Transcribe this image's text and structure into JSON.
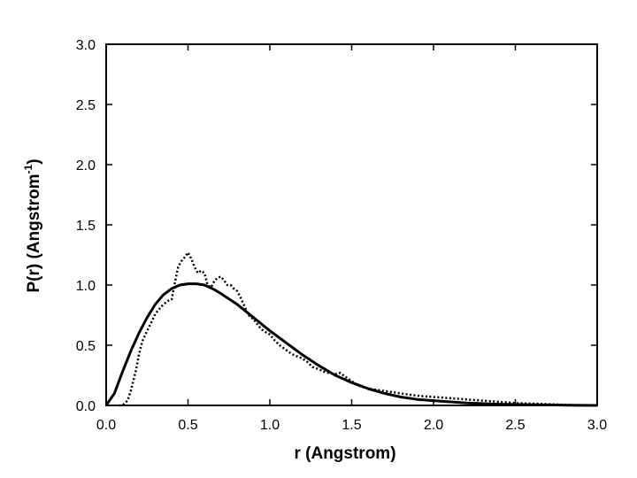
{
  "chart_data": {
    "type": "line",
    "title": "",
    "xlabel": "r  (Angstrom)",
    "ylabel_main": "P(r)  (Angstrom",
    "ylabel_superscript": "-1",
    "ylabel_close": ")",
    "xlim": [
      0,
      3
    ],
    "ylim": [
      0,
      3
    ],
    "x_ticks": [
      0.0,
      0.5,
      1.0,
      1.5,
      2.0,
      2.5,
      3.0
    ],
    "y_ticks": [
      0.0,
      0.5,
      1.0,
      1.5,
      2.0,
      2.5,
      3.0
    ],
    "x_tick_labels": [
      "0.0",
      "0.5",
      "1.0",
      "1.5",
      "2.0",
      "2.5",
      "3.0"
    ],
    "y_tick_labels": [
      "0.0",
      "0.5",
      "1.0",
      "1.5",
      "2.0",
      "2.5",
      "3.0"
    ],
    "grid": false,
    "legend": "none",
    "series": [
      {
        "style": "solid",
        "color": "#000000",
        "x": [
          0.0,
          0.05,
          0.1,
          0.15,
          0.2,
          0.25,
          0.3,
          0.35,
          0.4,
          0.45,
          0.5,
          0.55,
          0.6,
          0.65,
          0.7,
          0.8,
          0.9,
          1.0,
          1.1,
          1.2,
          1.3,
          1.4,
          1.5,
          1.6,
          1.7,
          1.8,
          1.9,
          2.0,
          2.2,
          2.4,
          2.6,
          2.8,
          3.0
        ],
        "y": [
          0.0,
          0.1,
          0.28,
          0.45,
          0.6,
          0.73,
          0.84,
          0.92,
          0.97,
          1.0,
          1.01,
          1.01,
          1.0,
          0.97,
          0.93,
          0.84,
          0.73,
          0.62,
          0.52,
          0.42,
          0.33,
          0.25,
          0.19,
          0.14,
          0.1,
          0.07,
          0.05,
          0.04,
          0.02,
          0.01,
          0.005,
          0.002,
          0.0
        ]
      },
      {
        "style": "dotted",
        "color": "#000000",
        "x": [
          0.08,
          0.1,
          0.13,
          0.15,
          0.18,
          0.2,
          0.22,
          0.25,
          0.28,
          0.3,
          0.33,
          0.35,
          0.38,
          0.4,
          0.42,
          0.44,
          0.46,
          0.48,
          0.5,
          0.52,
          0.54,
          0.56,
          0.58,
          0.6,
          0.62,
          0.64,
          0.66,
          0.68,
          0.7,
          0.72,
          0.74,
          0.76,
          0.78,
          0.8,
          0.82,
          0.84,
          0.86,
          0.88,
          0.9,
          0.93,
          0.96,
          1.0,
          1.03,
          1.06,
          1.1,
          1.13,
          1.16,
          1.2,
          1.23,
          1.26,
          1.3,
          1.33,
          1.36,
          1.4,
          1.43,
          1.46,
          1.5,
          1.55,
          1.6,
          1.7,
          1.8,
          1.9,
          2.0,
          2.1,
          2.2,
          2.3,
          2.4,
          2.5,
          2.6,
          2.7,
          2.8,
          2.9
        ],
        "y": [
          0.0,
          0.0,
          0.04,
          0.12,
          0.28,
          0.42,
          0.53,
          0.62,
          0.7,
          0.76,
          0.81,
          0.84,
          0.87,
          0.88,
          1.02,
          1.15,
          1.2,
          1.23,
          1.27,
          1.22,
          1.15,
          1.1,
          1.12,
          1.1,
          1.0,
          0.98,
          1.03,
          1.06,
          1.07,
          1.04,
          1.0,
          1.0,
          0.97,
          0.95,
          0.9,
          0.84,
          0.78,
          0.73,
          0.72,
          0.66,
          0.62,
          0.59,
          0.54,
          0.5,
          0.46,
          0.43,
          0.41,
          0.39,
          0.36,
          0.32,
          0.3,
          0.28,
          0.27,
          0.26,
          0.27,
          0.24,
          0.2,
          0.16,
          0.14,
          0.12,
          0.1,
          0.08,
          0.07,
          0.06,
          0.05,
          0.04,
          0.03,
          0.02,
          0.015,
          0.01,
          0.005,
          0.0
        ]
      }
    ]
  }
}
